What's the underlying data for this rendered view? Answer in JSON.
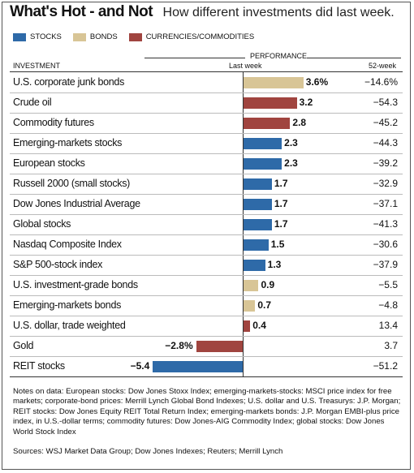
{
  "header": {
    "title": "What's Hot - and Not",
    "subtitle": "How different investments did last week."
  },
  "legend": [
    {
      "label": "STOCKS",
      "color": "#2e6aa8"
    },
    {
      "label": "BONDS",
      "color": "#d8c596"
    },
    {
      "label": "CURRENCIES/COMMODITIES",
      "color": "#a0443f"
    }
  ],
  "columns": {
    "group": "PERFORMANCE",
    "investment": "INVESTMENT",
    "last_week": "Last week",
    "week52": "52-week"
  },
  "chart_data": {
    "type": "bar",
    "orientation": "horizontal",
    "unit": "%",
    "xlim": [
      -5.4,
      3.6
    ],
    "grid": false,
    "rows": [
      {
        "name": "U.S. corporate junk bonds",
        "category": "BONDS",
        "last_week": 3.6,
        "label": "3.6%",
        "week52": "−14.6%"
      },
      {
        "name": "Crude oil",
        "category": "CURRENCIES/COMMODITIES",
        "last_week": 3.2,
        "label": "3.2",
        "week52": "−54.3"
      },
      {
        "name": "Commodity futures",
        "category": "CURRENCIES/COMMODITIES",
        "last_week": 2.8,
        "label": "2.8",
        "week52": "−45.2"
      },
      {
        "name": "Emerging-markets stocks",
        "category": "STOCKS",
        "last_week": 2.3,
        "label": "2.3",
        "week52": "−44.3"
      },
      {
        "name": "European stocks",
        "category": "STOCKS",
        "last_week": 2.3,
        "label": "2.3",
        "week52": "−39.2"
      },
      {
        "name": "Russell 2000 (small stocks)",
        "category": "STOCKS",
        "last_week": 1.7,
        "label": "1.7",
        "week52": "−32.9"
      },
      {
        "name": "Dow Jones Industrial Average",
        "category": "STOCKS",
        "last_week": 1.7,
        "label": "1.7",
        "week52": "−37.1"
      },
      {
        "name": "Global stocks",
        "category": "STOCKS",
        "last_week": 1.7,
        "label": "1.7",
        "week52": "−41.3"
      },
      {
        "name": "Nasdaq Composite Index",
        "category": "STOCKS",
        "last_week": 1.5,
        "label": "1.5",
        "week52": "−30.6"
      },
      {
        "name": "S&P 500-stock index",
        "category": "STOCKS",
        "last_week": 1.3,
        "label": "1.3",
        "week52": "−37.9"
      },
      {
        "name": "U.S. investment-grade bonds",
        "category": "BONDS",
        "last_week": 0.9,
        "label": "0.9",
        "week52": "−5.5"
      },
      {
        "name": "Emerging-markets bonds",
        "category": "BONDS",
        "last_week": 0.7,
        "label": "0.7",
        "week52": "−4.8"
      },
      {
        "name": "U.S. dollar, trade weighted",
        "category": "CURRENCIES/COMMODITIES",
        "last_week": 0.4,
        "label": "0.4",
        "week52": "13.4"
      },
      {
        "name": "Gold",
        "category": "CURRENCIES/COMMODITIES",
        "last_week": -2.8,
        "label": "−2.8%",
        "week52": "3.7"
      },
      {
        "name": "REIT stocks",
        "category": "STOCKS",
        "last_week": -5.4,
        "label": "−5.4",
        "week52": "−51.2"
      }
    ]
  },
  "notes": "Notes on data: European stocks: Dow Jones Stoxx Index; emerging-markets-stocks: MSCI price index for free markets; corporate-bond prices: Merrill Lynch Global Bond Indexes; U.S. dollar and U.S. Treasurys: J.P. Morgan; REIT stocks: Dow Jones Equity REIT Total Return Index; emerging-markets bonds: J.P. Morgan EMBI-plus price index, in U.S.-dollar terms; commodity futures: Dow Jones-AIG Commodity Index; global stocks: Dow Jones World Stock Index",
  "sources": "Sources: WSJ Market Data Group; Dow Jones Indexes; Reuters; Merrill Lynch"
}
